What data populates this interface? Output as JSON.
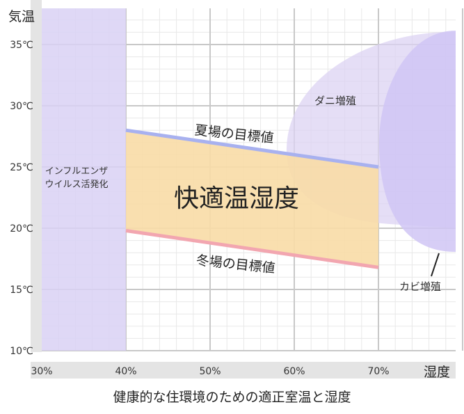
{
  "chart_data": {
    "type": "area",
    "caption": "健康的な住環境のための適正室温と湿度",
    "xlabel": "湿度",
    "ylabel": "気温",
    "xlim": [
      30,
      80
    ],
    "ylim": [
      10,
      38
    ],
    "x_ticks": [
      30,
      40,
      50,
      60,
      70
    ],
    "x_tick_labels": [
      "30%",
      "40%",
      "50%",
      "60%",
      "70%"
    ],
    "y_ticks": [
      10,
      15,
      20,
      25,
      30,
      35
    ],
    "y_tick_labels": [
      "10℃",
      "15℃",
      "20℃",
      "25℃",
      "30℃",
      "35℃"
    ],
    "grid": true,
    "regions": [
      {
        "name": "インフルエンザウイルス活発化",
        "label_lines": [
          "インフルエンザ",
          "ウイルス活発化"
        ],
        "x": [
          30,
          40
        ],
        "y": [
          10,
          38
        ],
        "color": "#d9d1f5"
      },
      {
        "name": "ダニ増殖",
        "label": "ダニ増殖",
        "color": "#dcd3f3"
      },
      {
        "name": "カビ増殖",
        "label": "カビ増殖",
        "color": "#d0c6f4"
      },
      {
        "name": "快適温湿度",
        "label": "快適温湿度",
        "x": [
          40,
          70
        ],
        "upper_y": [
          28,
          25
        ],
        "lower_y": [
          19.8,
          16.8
        ],
        "color": "#f8dca6"
      }
    ],
    "series": [
      {
        "name": "夏場の目標値",
        "x": [
          40,
          70
        ],
        "y": [
          28,
          25
        ],
        "color": "#a8b1ef"
      },
      {
        "name": "冬場の目標値",
        "x": [
          40,
          70
        ],
        "y": [
          19.8,
          16.8
        ],
        "color": "#f2a6b0"
      }
    ]
  }
}
